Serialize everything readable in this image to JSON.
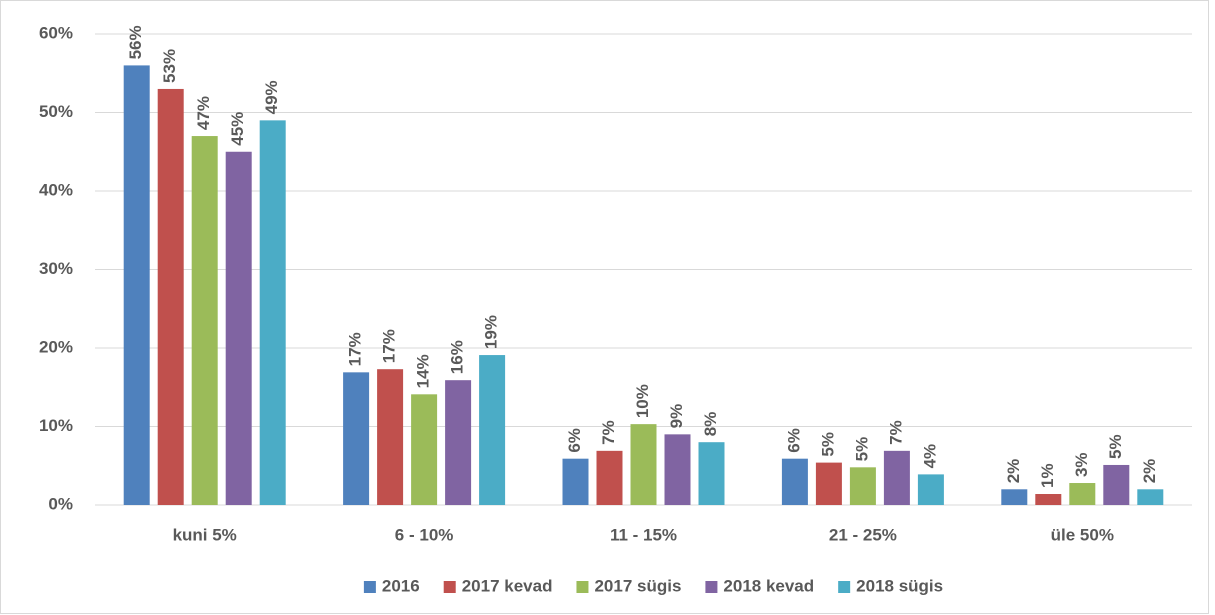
{
  "chart_data": {
    "type": "bar",
    "categories": [
      "kuni 5%",
      "6 - 10%",
      "11 - 15%",
      "21 - 25%",
      "üle 50%"
    ],
    "series": [
      {
        "name": "2016",
        "color": "#4f81bd",
        "values": [
          56,
          16.9,
          5.9,
          5.9,
          2.0
        ],
        "value_labels": [
          "56%",
          "17%",
          "6%",
          "6%",
          "2%"
        ]
      },
      {
        "name": "2017 kevad",
        "color": "#c0504d",
        "values": [
          53,
          17.3,
          6.9,
          5.4,
          1.4
        ],
        "value_labels": [
          "53%",
          "17%",
          "7%",
          "5%",
          "1%"
        ]
      },
      {
        "name": "2017 sügis",
        "color": "#9bbb59",
        "values": [
          47,
          14.1,
          10.3,
          4.8,
          2.8
        ],
        "value_labels": [
          "47%",
          "14%",
          "10%",
          "5%",
          "3%"
        ]
      },
      {
        "name": "2018 kevad",
        "color": "#8064a2",
        "values": [
          45,
          15.9,
          9.0,
          6.9,
          5.1
        ],
        "value_labels": [
          "45%",
          "16%",
          "9%",
          "7%",
          "5%"
        ]
      },
      {
        "name": "2018 sügis",
        "color": "#4bacc6",
        "values": [
          49,
          19.1,
          8.0,
          3.9,
          2.0
        ],
        "value_labels": [
          "49%",
          "19%",
          "8%",
          "4%",
          "2%"
        ]
      }
    ],
    "ylim": [
      0,
      60
    ],
    "yticks": [
      {
        "value": 0,
        "label": "0%"
      },
      {
        "value": 10,
        "label": "10%"
      },
      {
        "value": 20,
        "label": "20%"
      },
      {
        "value": 30,
        "label": "30%"
      },
      {
        "value": 40,
        "label": "40%"
      },
      {
        "value": 50,
        "label": "50%"
      },
      {
        "value": 60,
        "label": "60%"
      }
    ],
    "grid": true,
    "legend": "bottom"
  }
}
